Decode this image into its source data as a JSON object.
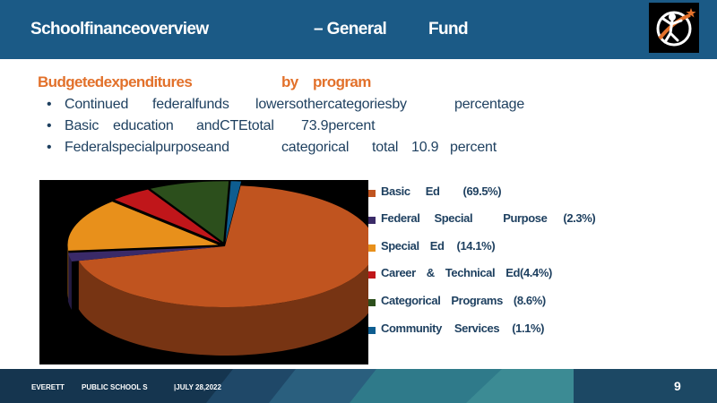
{
  "header": {
    "title_part1": "Schoolfinanceoverview",
    "title_part2": "–  General",
    "title_part3": "Fund"
  },
  "subtitle": {
    "part1": "Budgetedexpenditures",
    "part2": "by",
    "part3": "program"
  },
  "bullets": [
    [
      "Continued",
      "federalfunds",
      "lowersothercategoriesby",
      "percentage"
    ],
    [
      "Basic",
      "education",
      "andCTEtotal",
      "73.9percent"
    ],
    [
      "Federalspecialpurposeand",
      "categorical",
      "total",
      "10.9",
      "percent"
    ]
  ],
  "footer": {
    "district_a": "EVERETT",
    "district_b": "PUBLIC SCHOOL S",
    "date": "|JULY     28,2022",
    "page": "9"
  },
  "chart_data": {
    "type": "pie",
    "style": "3d",
    "legend_position": "right",
    "series": [
      {
        "name": "Basic Ed",
        "value": 69.5,
        "color": "#c0541f",
        "label_parts": [
          "Basic",
          "Ed",
          "(69.5%)"
        ]
      },
      {
        "name": "Federal Special Purpose",
        "value": 2.3,
        "color": "#3a2a68",
        "label_parts": [
          "Federal",
          "Special",
          "Purpose",
          "(2.3%)"
        ]
      },
      {
        "name": "Special Ed",
        "value": 14.1,
        "color": "#e8901b",
        "label_parts": [
          "Special",
          "Ed",
          "(14.1%)"
        ]
      },
      {
        "name": "Career & Technical Ed",
        "value": 4.4,
        "color": "#c0161a",
        "label_parts": [
          "Career",
          "&",
          "Technical",
          "Ed(4.4%)"
        ]
      },
      {
        "name": "Categorical Programs",
        "value": 8.6,
        "color": "#2c4f1c",
        "label_parts": [
          "Categorical",
          "Programs",
          "(8.6%)"
        ]
      },
      {
        "name": "Community Services",
        "value": 1.1,
        "color": "#0e5d90",
        "label_parts": [
          "Community",
          "Services",
          "(1.1%)"
        ]
      }
    ]
  }
}
